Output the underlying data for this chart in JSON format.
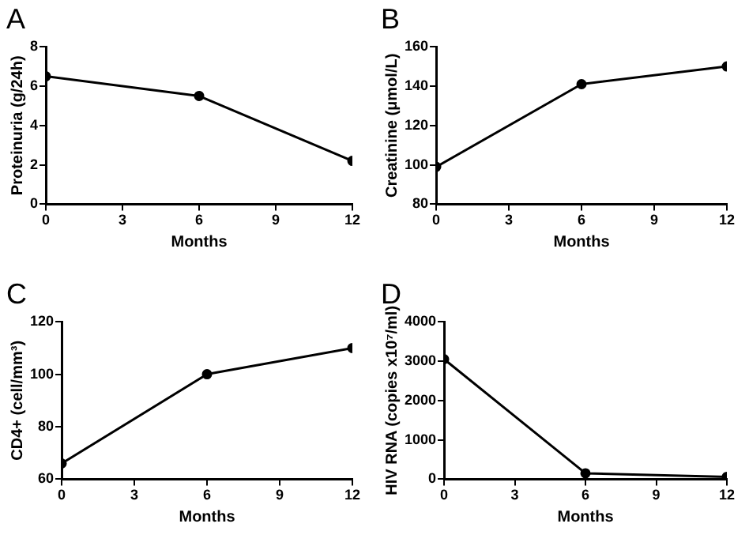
{
  "chart_data": [
    {
      "type": "line",
      "title": "A",
      "xlabel": "Months",
      "ylabel": "Proteinuria (g/24h)",
      "x": [
        0,
        6,
        12
      ],
      "series": [
        {
          "color": "#000000",
          "values": [
            6.5,
            5.5,
            2.2
          ]
        }
      ],
      "xlim": [
        0,
        12
      ],
      "xticks": [
        0,
        3,
        6,
        9,
        12
      ],
      "ylim": [
        0,
        8
      ],
      "yticks": [
        0,
        2,
        4,
        6,
        8
      ],
      "grid": false,
      "legend": false,
      "marker": "circle",
      "line_style": "solid"
    },
    {
      "type": "line",
      "title": "B",
      "xlabel": "Months",
      "ylabel": "Creatinine (μmol/L)",
      "x": [
        0,
        6,
        12
      ],
      "series": [
        {
          "color": "#000000",
          "values": [
            99,
            141,
            150
          ]
        }
      ],
      "xlim": [
        0,
        12
      ],
      "xticks": [
        0,
        3,
        6,
        9,
        12
      ],
      "ylim": [
        80,
        160
      ],
      "yticks": [
        80,
        100,
        120,
        140,
        160
      ],
      "grid": false,
      "legend": false,
      "marker": "circle",
      "line_style": "solid"
    },
    {
      "type": "line",
      "title": "C",
      "xlabel": "Months",
      "ylabel": "CD4+ (cell/mm³)",
      "x": [
        0,
        6,
        12
      ],
      "series": [
        {
          "color": "#000000",
          "values": [
            66,
            100,
            110
          ]
        }
      ],
      "xlim": [
        0,
        12
      ],
      "xticks": [
        0,
        3,
        6,
        9,
        12
      ],
      "ylim": [
        60,
        120
      ],
      "yticks": [
        60,
        80,
        100,
        120
      ],
      "grid": false,
      "legend": false,
      "marker": "circle",
      "line_style": "solid"
    },
    {
      "type": "line",
      "title": "D",
      "xlabel": "Months",
      "ylabel": "HIV RNA (copies x10⁷/ml)",
      "x": [
        0,
        6,
        12
      ],
      "series": [
        {
          "color": "#000000",
          "values": [
            3050,
            150,
            60
          ]
        }
      ],
      "xlim": [
        0,
        12
      ],
      "xticks": [
        0,
        3,
        6,
        9,
        12
      ],
      "ylim": [
        0,
        4000
      ],
      "yticks": [
        0,
        1000,
        2000,
        3000,
        4000
      ],
      "grid": false,
      "legend": false,
      "marker": "circle",
      "line_style": "solid"
    }
  ]
}
